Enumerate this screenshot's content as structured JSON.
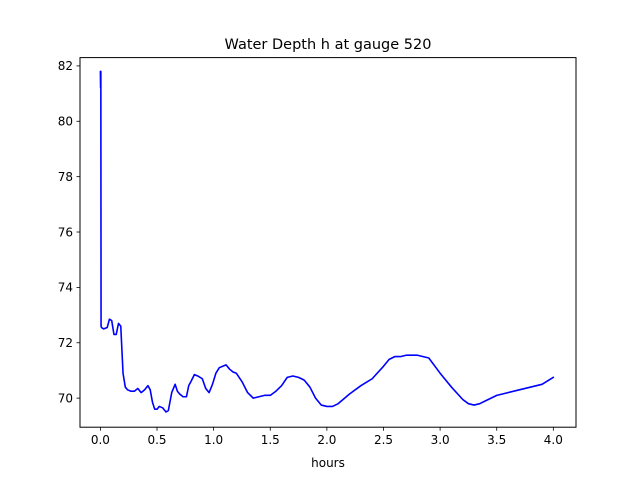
{
  "chart_data": {
    "type": "line",
    "title": "Water Depth h at gauge 520",
    "xlabel": "hours",
    "ylabel": "",
    "xlim": [
      -0.18,
      4.2
    ],
    "ylim": [
      68.95,
      82.3
    ],
    "xticks": [
      0.0,
      0.5,
      1.0,
      1.5,
      2.0,
      2.5,
      3.0,
      3.5,
      4.0
    ],
    "xtick_labels": [
      "0.0",
      "0.5",
      "1.0",
      "1.5",
      "2.0",
      "2.5",
      "3.0",
      "3.5",
      "4.0"
    ],
    "yticks": [
      70,
      72,
      74,
      76,
      78,
      80,
      82
    ],
    "ytick_labels": [
      "70",
      "72",
      "74",
      "76",
      "78",
      "80",
      "82"
    ],
    "grid": false,
    "series": [
      {
        "color": "#0000ff",
        "x": [
          0.0,
          0.002,
          0.004,
          0.006,
          0.01,
          0.03,
          0.06,
          0.08,
          0.1,
          0.12,
          0.14,
          0.16,
          0.18,
          0.2,
          0.22,
          0.24,
          0.27,
          0.3,
          0.33,
          0.36,
          0.39,
          0.42,
          0.44,
          0.46,
          0.48,
          0.5,
          0.52,
          0.55,
          0.58,
          0.6,
          0.63,
          0.66,
          0.68,
          0.7,
          0.73,
          0.76,
          0.78,
          0.8,
          0.83,
          0.86,
          0.9,
          0.93,
          0.96,
          0.99,
          1.02,
          1.05,
          1.08,
          1.11,
          1.14,
          1.17,
          1.2,
          1.25,
          1.3,
          1.35,
          1.4,
          1.45,
          1.5,
          1.55,
          1.6,
          1.65,
          1.7,
          1.75,
          1.8,
          1.85,
          1.9,
          1.95,
          2.0,
          2.05,
          2.1,
          2.2,
          2.3,
          2.4,
          2.5,
          2.55,
          2.6,
          2.65,
          2.7,
          2.75,
          2.8,
          2.85,
          2.9,
          3.0,
          3.1,
          3.2,
          3.25,
          3.3,
          3.35,
          3.4,
          3.5,
          3.6,
          3.7,
          3.8,
          3.9,
          4.0
        ],
        "values": [
          81.8,
          81.2,
          81.8,
          72.6,
          72.55,
          72.5,
          72.55,
          72.85,
          72.8,
          72.3,
          72.3,
          72.7,
          72.6,
          70.9,
          70.4,
          70.3,
          70.25,
          70.25,
          70.35,
          70.2,
          70.3,
          70.45,
          70.3,
          69.85,
          69.6,
          69.6,
          69.7,
          69.65,
          69.5,
          69.55,
          70.2,
          70.5,
          70.25,
          70.15,
          70.05,
          70.05,
          70.45,
          70.6,
          70.85,
          70.8,
          70.7,
          70.35,
          70.2,
          70.5,
          70.9,
          71.1,
          71.15,
          71.2,
          71.05,
          70.95,
          70.9,
          70.6,
          70.2,
          70.0,
          70.05,
          70.1,
          70.1,
          70.25,
          70.45,
          70.75,
          70.8,
          70.75,
          70.65,
          70.4,
          70.0,
          69.75,
          69.7,
          69.7,
          69.8,
          70.15,
          70.45,
          70.7,
          71.15,
          71.4,
          71.5,
          71.5,
          71.55,
          71.55,
          71.55,
          71.5,
          71.45,
          70.9,
          70.4,
          69.95,
          69.8,
          69.75,
          69.8,
          69.9,
          70.1,
          70.2,
          70.3,
          70.4,
          70.5,
          70.75
        ]
      }
    ]
  }
}
